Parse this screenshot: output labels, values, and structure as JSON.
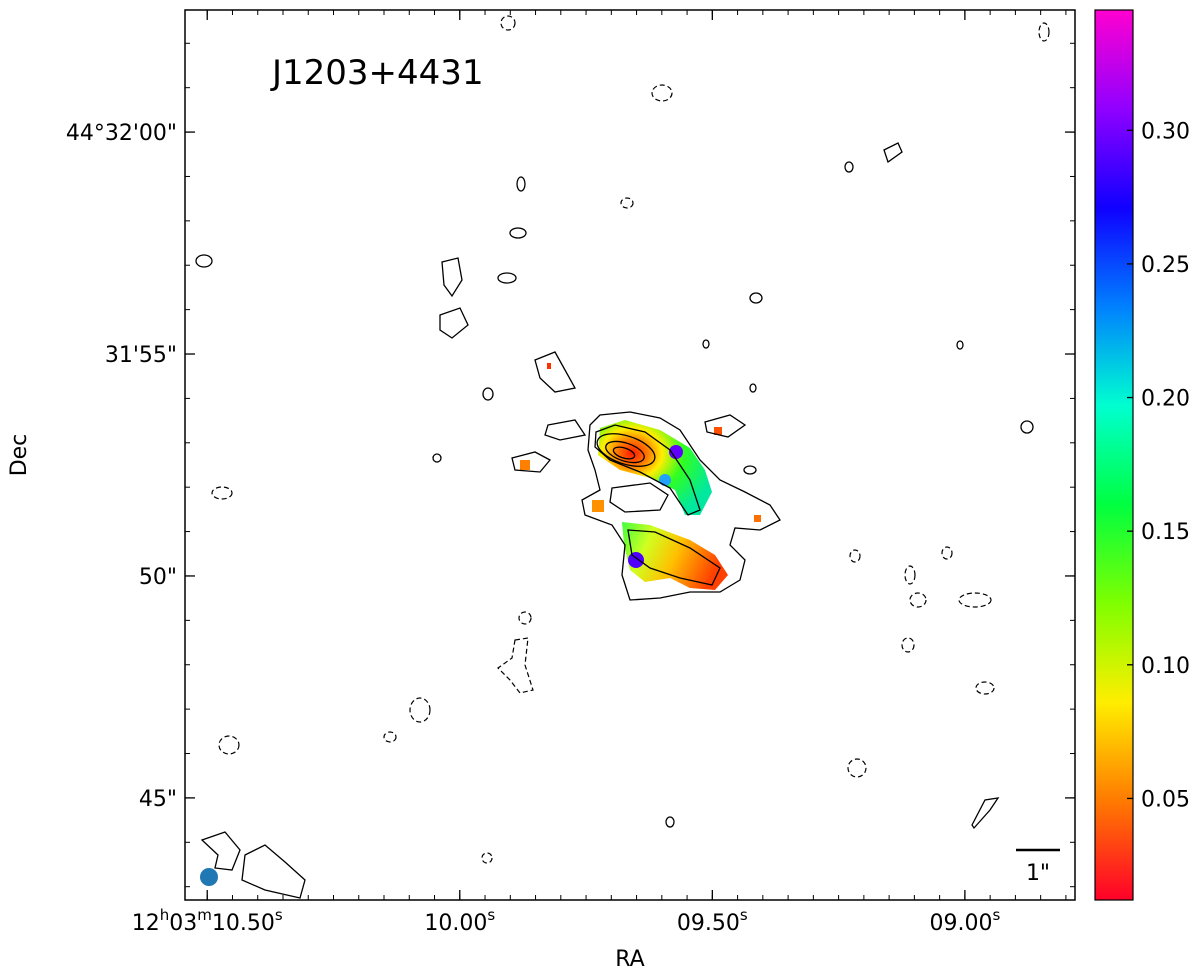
{
  "chart_data": {
    "type": "heatmap",
    "title": "J1203+4431",
    "xlabel": "RA",
    "ylabel": "Dec",
    "xlim": [
      10.544,
      8.782
    ],
    "xticks": [
      {
        "value": 10.5,
        "label": "12h03m10.50s"
      },
      {
        "value": 10.0,
        "label": "10.00s"
      },
      {
        "value": 9.5,
        "label": "09.50s"
      },
      {
        "value": 9.0,
        "label": "09.00s"
      }
    ],
    "ylim": [
      42.7,
      62.75
    ],
    "yticks": [
      {
        "value": 60,
        "label": "44°32'00\""
      },
      {
        "value": 55,
        "label": "31'55\""
      },
      {
        "value": 50,
        "label": "50\""
      },
      {
        "value": 45,
        "label": "45\""
      }
    ],
    "colorbar": {
      "lim": [
        0.012,
        0.345
      ],
      "ticks": [
        0.05,
        {
          "value": 0.1,
          "label": "0.10"
        },
        0.15,
        {
          "value": 0.2,
          "label": "0.20"
        },
        0.25,
        {
          "value": 0.3,
          "label": "0.30"
        }
      ],
      "colormap": [
        "#ff0029",
        "#ff7a00",
        "#ffee00",
        "#7fff00",
        "#00ff40",
        "#00ffd0",
        "#0080ff",
        "#1000ff",
        "#9000ff",
        "#ff00d0"
      ]
    },
    "scalebar_label": "1\""
  }
}
